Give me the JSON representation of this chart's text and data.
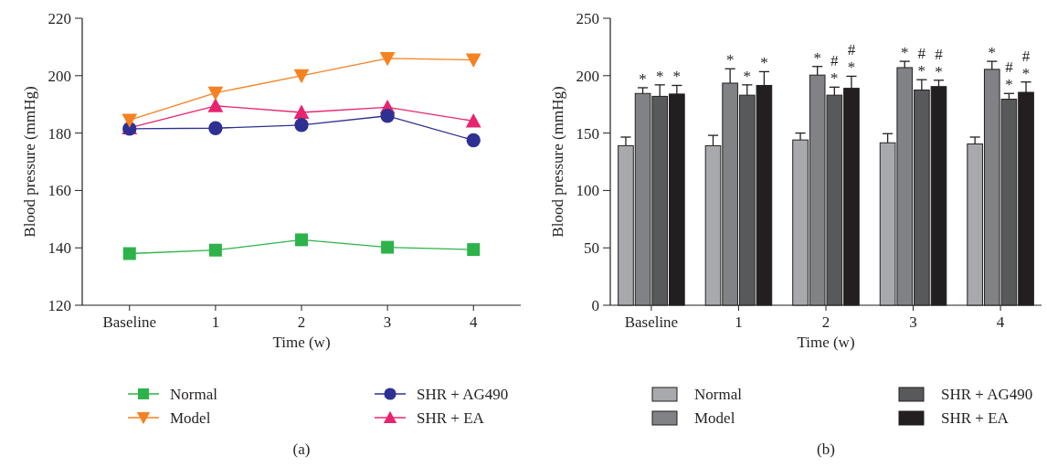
{
  "chart_data": [
    {
      "type": "line",
      "xlabel": "Time (w)",
      "ylabel": "Blood pressure (mmHg)",
      "categories": [
        "Baseline",
        "1",
        "2",
        "3",
        "4"
      ],
      "ylim": [
        120,
        220
      ],
      "yticks": [
        120,
        140,
        160,
        180,
        200,
        220
      ],
      "legend": "bottom",
      "annotations": [
        "(a)"
      ],
      "series": [
        {
          "name": "Normal",
          "color": "#2db34a",
          "marker": "square",
          "values": [
            138,
            139.2,
            142.8,
            140.2,
            139.4
          ]
        },
        {
          "name": "Model",
          "color": "#f58220",
          "marker": "triangle-down",
          "values": [
            184.5,
            194,
            200,
            206,
            205.5
          ]
        },
        {
          "name": "SHR + AG490",
          "color": "#2e3192",
          "marker": "circle",
          "values": [
            181.5,
            181.7,
            182.8,
            186,
            177.5
          ]
        },
        {
          "name": "SHR + EA",
          "color": "#e8246f",
          "marker": "triangle",
          "values": [
            181.8,
            189.5,
            187.2,
            189,
            184.2
          ]
        }
      ]
    },
    {
      "type": "bar",
      "xlabel": "Time (w)",
      "ylabel": "Blood pressure (mmHg)",
      "categories": [
        "Baseline",
        "1",
        "2",
        "3",
        "4"
      ],
      "ylim": [
        0,
        250
      ],
      "yticks": [
        0,
        50,
        100,
        150,
        200,
        250
      ],
      "legend": "bottom",
      "series": [
        {
          "name": "Normal",
          "color": "#a7a9ac",
          "values": [
            139,
            139,
            144,
            141.5,
            140.5
          ],
          "errors": [
            7.5,
            9,
            6,
            8,
            6
          ]
        },
        {
          "name": "Model",
          "color": "#808285",
          "values": [
            184.5,
            193.5,
            200.5,
            207,
            205.5
          ],
          "errors": [
            5,
            12.5,
            7.5,
            5.5,
            7
          ]
        },
        {
          "name": "SHR + AG490",
          "color": "#58595b",
          "values": [
            182,
            183,
            183,
            187.5,
            179.5
          ],
          "errors": [
            10,
            9,
            7,
            9,
            5
          ]
        },
        {
          "name": "SHR + EA",
          "color": "#231f20",
          "values": [
            184,
            191.5,
            189,
            190.5,
            185.5
          ],
          "errors": [
            7.5,
            12,
            10.5,
            5.5,
            9
          ]
        }
      ],
      "annotations": [
        {
          "text": "*",
          "x": "Baseline",
          "y": 189.5
        },
        {
          "text": "*",
          "x": "Baseline",
          "y": 192
        },
        {
          "text": "*",
          "x": "Baseline",
          "y": 191.5
        },
        {
          "text": "*",
          "x": "1",
          "y": 206
        },
        {
          "text": "*",
          "x": "1",
          "y": 192
        },
        {
          "text": "*",
          "x": "1",
          "y": 203.5
        },
        {
          "text": "*",
          "x": "2",
          "y": 208
        },
        {
          "text": "#\n*",
          "x": "2",
          "y": 190
        },
        {
          "text": "#\n*",
          "x": "2",
          "y": 199.5
        },
        {
          "text": "*",
          "x": "3",
          "y": 212.5
        },
        {
          "text": "#\n*",
          "x": "3",
          "y": 196.5
        },
        {
          "text": "#\n*",
          "x": "3",
          "y": 196
        },
        {
          "text": "*",
          "x": "4",
          "y": 212.5
        },
        {
          "text": "#\n*",
          "x": "4",
          "y": 184.5
        },
        {
          "text": "#\n*",
          "x": "4",
          "y": 194.5
        },
        "(b)"
      ]
    }
  ]
}
